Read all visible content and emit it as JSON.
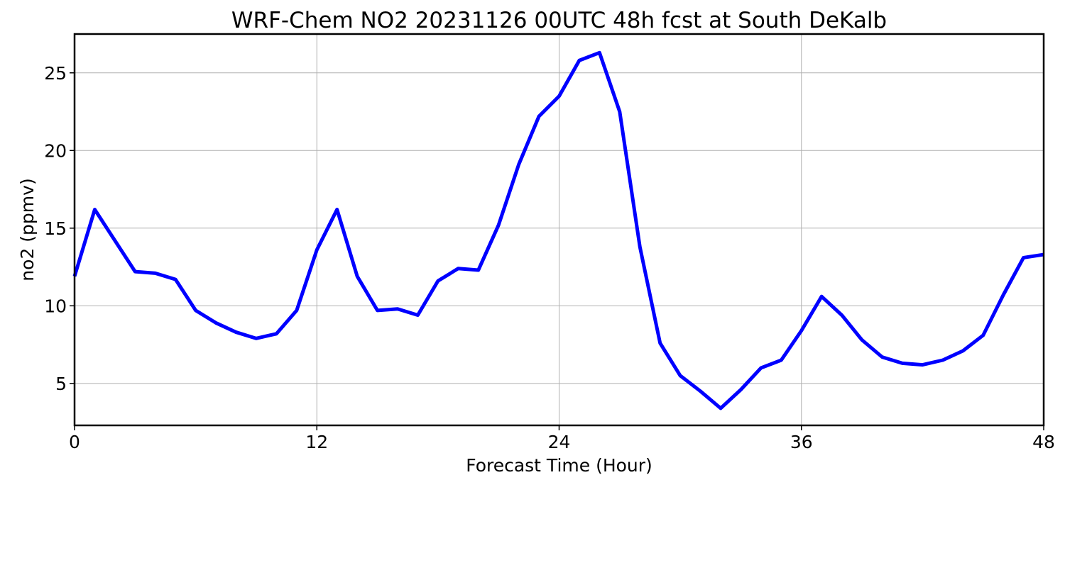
{
  "chart_data": {
    "type": "line",
    "title": "WRF-Chem NO2  20231126 00UTC 48h fcst at South DeKalb",
    "xlabel": "Forecast Time (Hour)",
    "ylabel": "no2  (ppmv)",
    "xlim": [
      0,
      48
    ],
    "ylim": [
      2.3,
      27.5
    ],
    "xticks": [
      0,
      12,
      24,
      36,
      48
    ],
    "yticks": [
      5,
      10,
      15,
      20,
      25
    ],
    "grid": true,
    "legend": "none",
    "series": [
      {
        "color": "#0000ff",
        "x": [
          0,
          1,
          2,
          3,
          4,
          5,
          6,
          7,
          8,
          9,
          10,
          11,
          12,
          13,
          14,
          15,
          16,
          17,
          18,
          19,
          20,
          21,
          22,
          23,
          24,
          25,
          26,
          27,
          28,
          29,
          30,
          31,
          32,
          33,
          34,
          35,
          36,
          37,
          38,
          39,
          40,
          41,
          42,
          43,
          44,
          45,
          46,
          47,
          48
        ],
        "values": [
          11.9,
          16.2,
          14.2,
          12.2,
          12.1,
          11.7,
          9.7,
          8.9,
          8.3,
          7.9,
          8.2,
          9.7,
          13.6,
          16.2,
          11.9,
          9.7,
          9.8,
          9.4,
          11.6,
          12.4,
          12.3,
          15.2,
          19.1,
          22.2,
          23.5,
          25.8,
          26.3,
          22.5,
          13.8,
          7.6,
          5.5,
          4.5,
          3.4,
          4.6,
          6.0,
          6.5,
          8.4,
          10.6,
          9.4,
          7.8,
          6.7,
          6.3,
          6.2,
          6.5,
          7.1,
          8.1,
          10.7,
          13.1,
          13.3
        ]
      }
    ]
  }
}
